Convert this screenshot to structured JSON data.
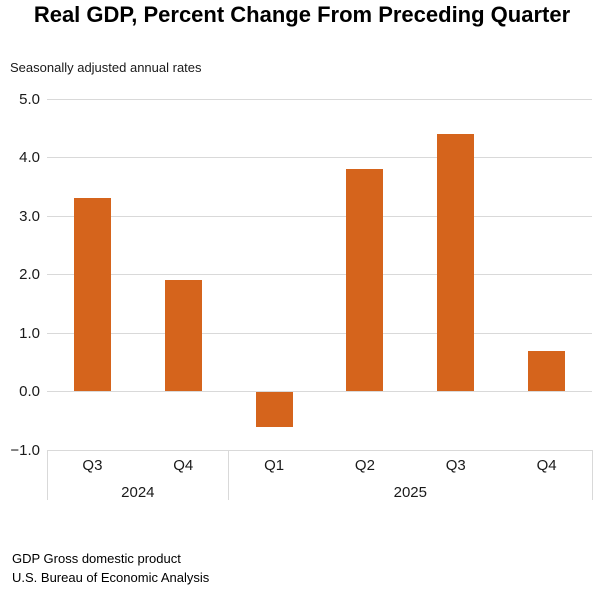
{
  "chart_data": {
    "type": "bar",
    "title": "Real GDP, Percent Change From Preceding Quarter",
    "subtitle": "Seasonally adjusted annual rates",
    "categories": [
      "2024 Q3",
      "2024 Q4",
      "2025 Q1",
      "2025 Q2",
      "2025 Q3",
      "2025 Q4"
    ],
    "values": [
      3.3,
      1.9,
      -0.6,
      3.8,
      4.4,
      0.7
    ],
    "xlabel": "",
    "ylabel": "",
    "ylim": [
      -1.0,
      5.0
    ],
    "ytick_step": 1.0,
    "ytick_labels": [
      "5.0",
      "4.0",
      "3.0",
      "2.0",
      "1.0",
      "0.0",
      "−1.0"
    ],
    "grid": true,
    "bar_color": "#D5641C",
    "gridline_color": "#D9D9D9",
    "x_axis": {
      "quarter_labels": [
        "Q3",
        "Q4",
        "Q1",
        "Q2",
        "Q3",
        "Q4"
      ],
      "year_groups": [
        {
          "label": "2024",
          "span": 2
        },
        {
          "label": "2025",
          "span": 4
        }
      ]
    }
  },
  "footer": {
    "line1": "GDP Gross domestic product",
    "line2": "U.S. Bureau of Economic Analysis"
  }
}
